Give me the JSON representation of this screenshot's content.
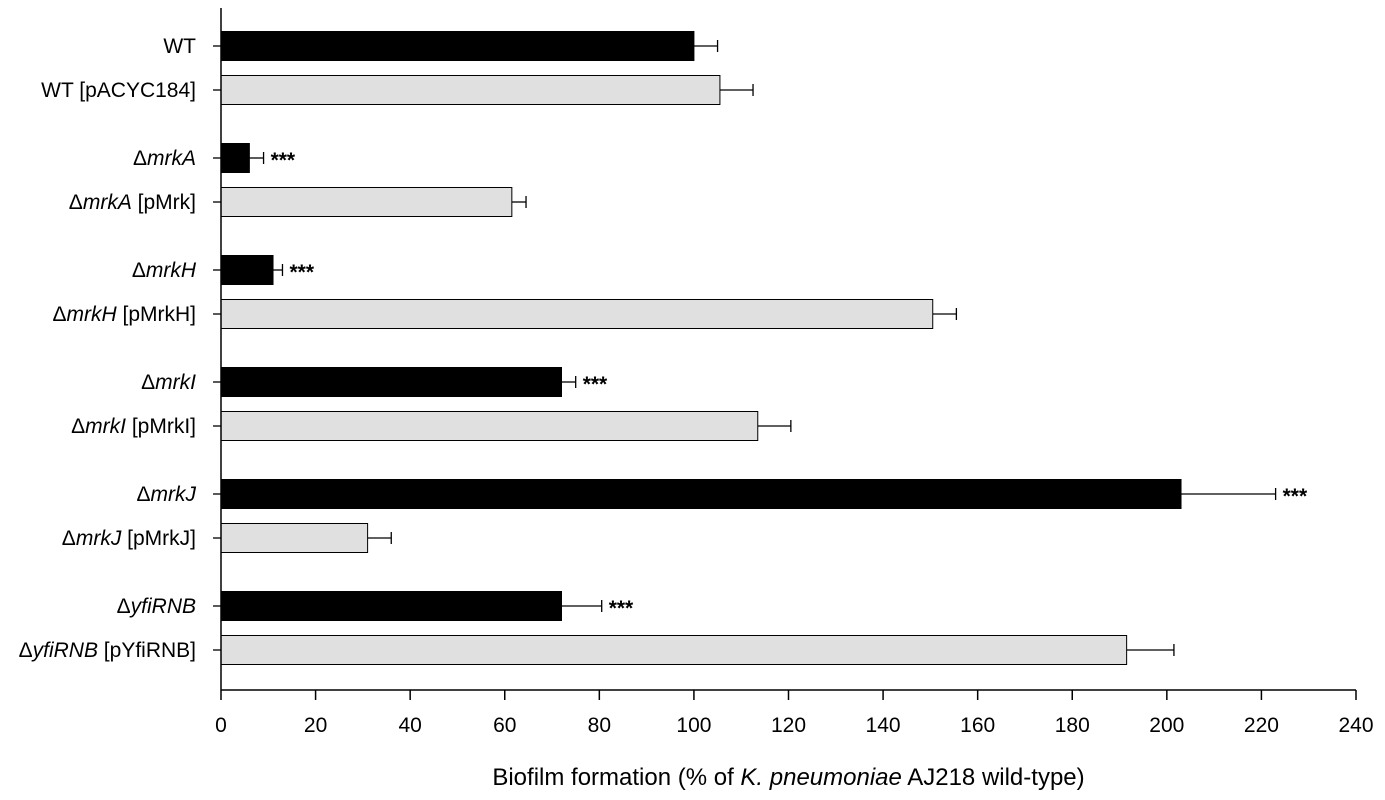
{
  "chart_data": {
    "type": "bar",
    "orientation": "horizontal",
    "xlabel": {
      "parts": [
        {
          "text": "Biofilm formation (% of ",
          "italic": false
        },
        {
          "text": "K. pneumoniae",
          "italic": true
        },
        {
          "text": " AJ218 wild-type)",
          "italic": false
        }
      ]
    },
    "xlim": [
      0,
      240
    ],
    "xticks": [
      0,
      20,
      40,
      60,
      80,
      100,
      120,
      140,
      160,
      180,
      200,
      220,
      240
    ],
    "colors": {
      "mutant": "#000000",
      "complemented": "#e0e0e0",
      "edge": "#000000"
    },
    "bars": [
      {
        "label": [
          {
            "text": "WT",
            "italic": false
          }
        ],
        "value": 100,
        "error": 5,
        "style": "mutant",
        "sig": ""
      },
      {
        "label": [
          {
            "text": "WT [pACYC184]",
            "italic": false
          }
        ],
        "value": 105.5,
        "error": 7,
        "style": "complemented",
        "sig": ""
      },
      {
        "label": [
          {
            "text": "Δ",
            "italic": false
          },
          {
            "text": "mrkA",
            "italic": true
          }
        ],
        "value": 6,
        "error": 3,
        "style": "mutant",
        "sig": "***"
      },
      {
        "label": [
          {
            "text": "Δ",
            "italic": false
          },
          {
            "text": "mrkA",
            "italic": true
          },
          {
            "text": " [pMrk]",
            "italic": false
          }
        ],
        "value": 61.5,
        "error": 3,
        "style": "complemented",
        "sig": ""
      },
      {
        "label": [
          {
            "text": "Δ",
            "italic": false
          },
          {
            "text": "mrkH",
            "italic": true
          }
        ],
        "value": 11,
        "error": 2,
        "style": "mutant",
        "sig": "***"
      },
      {
        "label": [
          {
            "text": "Δ",
            "italic": false
          },
          {
            "text": "mrkH",
            "italic": true
          },
          {
            "text": " [pMrkH]",
            "italic": false
          }
        ],
        "value": 150.5,
        "error": 5,
        "style": "complemented",
        "sig": ""
      },
      {
        "label": [
          {
            "text": "Δ",
            "italic": false
          },
          {
            "text": "mrkI",
            "italic": true
          }
        ],
        "value": 72,
        "error": 3,
        "style": "mutant",
        "sig": "***"
      },
      {
        "label": [
          {
            "text": "Δ",
            "italic": false
          },
          {
            "text": "mrkI",
            "italic": true
          },
          {
            "text": " [pMrkI]",
            "italic": false
          }
        ],
        "value": 113.5,
        "error": 7,
        "style": "complemented",
        "sig": ""
      },
      {
        "label": [
          {
            "text": "Δ",
            "italic": false
          },
          {
            "text": "mrkJ",
            "italic": true
          }
        ],
        "value": 203,
        "error": 20,
        "style": "mutant",
        "sig": "***"
      },
      {
        "label": [
          {
            "text": "Δ",
            "italic": false
          },
          {
            "text": "mrkJ",
            "italic": true
          },
          {
            "text": " [pMrkJ]",
            "italic": false
          }
        ],
        "value": 31,
        "error": 5,
        "style": "complemented",
        "sig": ""
      },
      {
        "label": [
          {
            "text": "Δ",
            "italic": false
          },
          {
            "text": "yfiRNB",
            "italic": true
          }
        ],
        "value": 72,
        "error": 8.5,
        "style": "mutant",
        "sig": "***"
      },
      {
        "label": [
          {
            "text": "Δ",
            "italic": false
          },
          {
            "text": "yfiRNB",
            "italic": true
          },
          {
            "text": " [pYfiRNB]",
            "italic": false
          }
        ],
        "value": 191.5,
        "error": 10,
        "style": "complemented",
        "sig": ""
      }
    ]
  }
}
